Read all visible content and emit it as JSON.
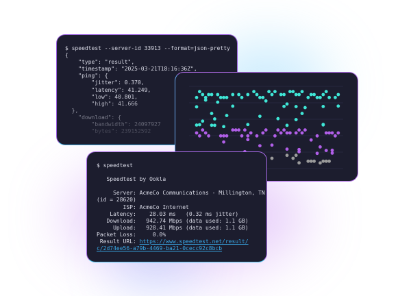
{
  "json_terminal": {
    "lines": [
      "$ speedtest --server-id 33913 --format=json-pretty",
      "{",
      "    \"type\": \"result\",",
      "    \"timestamp\": \"2025-03-21T18:16:36Z\",",
      "    \"ping\": {",
      "        \"jitter\": 0.370,",
      "        \"latency\": 41.249,",
      "        \"low\": 40.801,",
      "        \"high\": 41.666",
      "  },",
      "    \"download\": {",
      "        \"bandwidth\": 24097927",
      "        \"bytes\": 239152592"
    ]
  },
  "dot_plot": {
    "colors": {
      "upper": "#3fe6d6",
      "middle": "#b15fe8",
      "lower": "#9b9b9b",
      "grid": "#2a2d45"
    }
  },
  "cli_terminal": {
    "command": "$ speedtest",
    "lines": [
      "",
      "   Speedtest by Ookla",
      "",
      "     Server: AcmeCo Communications - Millington, TN",
      "(id = 28620)",
      "        ISP: AcmeCo Internet",
      "    Latency:    28.03 ms   (0.32 ms jitter)",
      "   Download:   942.74 Mbps (data used: 1.1 GB)",
      "     Upload:   928.41 Mbps (data used: 1.1 GB)",
      "Packet Loss:     0.0%"
    ],
    "result_label": " Result URL: ",
    "result_url_1": "https://www.speedtest.net/result/",
    "result_url_2": "c/2d74ee56-a79b-4469-ba21-0cecc92c8bcb"
  }
}
